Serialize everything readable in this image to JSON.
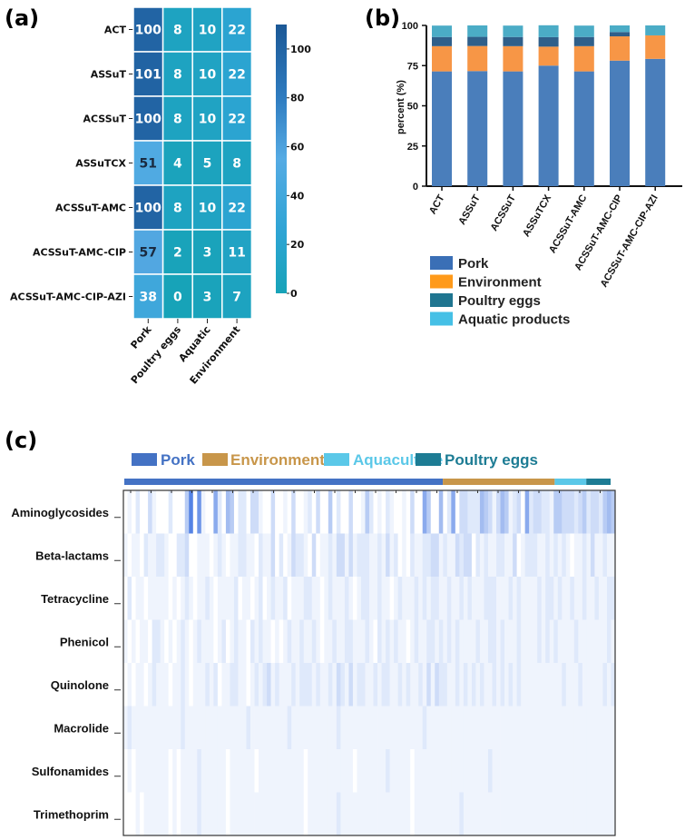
{
  "chart_data": [
    {
      "panel_label": "(a)",
      "type": "heatmap",
      "rows": [
        "ACT",
        "ASSuT",
        "ACSSuT",
        "ASSuTCX",
        "ACSSuT-AMC",
        "ACSSuT-AMC-CIP",
        "ACSSuT-AMC-CIP-AZI"
      ],
      "columns": [
        "Pork",
        "Poultry eggs",
        "Aquatic",
        "Environment"
      ],
      "values": [
        [
          100,
          8,
          10,
          22
        ],
        [
          101,
          8,
          10,
          22
        ],
        [
          100,
          8,
          10,
          22
        ],
        [
          51,
          4,
          5,
          8
        ],
        [
          100,
          8,
          10,
          22
        ],
        [
          57,
          2,
          3,
          11
        ],
        [
          38,
          0,
          3,
          7
        ]
      ],
      "colorbar": {
        "range": [
          0,
          110
        ],
        "ticks": [
          "0",
          "20",
          "40",
          "60",
          "80",
          "100"
        ]
      }
    },
    {
      "panel_label": "(b)",
      "type": "bar",
      "stacked": true,
      "ylabel": "percent (%)",
      "ylim": [
        0,
        100
      ],
      "yticks": [
        "0",
        "25",
        "50",
        "75",
        "100"
      ],
      "categories": [
        "ACT",
        "ASSuT",
        "ACSSuT",
        "ASSuTCX",
        "ACSSuT-AMC",
        "ACSSuT-AMC-CIP",
        "ACSSuT-AMC-CIP-AZI"
      ],
      "series": [
        {
          "name": "Pork",
          "color": "#4a7ebb",
          "values": [
            71.4,
            71.6,
            71.4,
            75.0,
            71.4,
            78.1,
            79.2
          ]
        },
        {
          "name": "Environment",
          "color": "#f79646",
          "values": [
            15.7,
            15.6,
            15.7,
            11.8,
            15.7,
            15.1,
            14.6
          ]
        },
        {
          "name": "Poultry eggs",
          "color": "#2f5f8a",
          "values": [
            5.7,
            5.7,
            5.7,
            5.9,
            5.7,
            2.7,
            0
          ]
        },
        {
          "name": "Aquatic products",
          "color": "#4bacc6",
          "values": [
            7.1,
            7.1,
            7.1,
            7.4,
            7.1,
            4.1,
            6.2
          ]
        }
      ],
      "legend": [
        {
          "name": "Pork",
          "color": "#3a6fb6"
        },
        {
          "name": "Environment",
          "color": "#ff9a1a"
        },
        {
          "name": "Poultry eggs",
          "color": "#1f7590"
        },
        {
          "name": "Aquatic products",
          "color": "#45c0e6"
        }
      ]
    },
    {
      "panel_label": "(c)",
      "type": "heatmap",
      "legend": [
        {
          "name": "Pork",
          "color": "#4472c4"
        },
        {
          "name": "Environment",
          "color": "#c8964a"
        },
        {
          "name": "Aquaculture",
          "color": "#5bc8e8"
        },
        {
          "name": "Poultry eggs",
          "color": "#1d7c94"
        }
      ],
      "group_fractions": [
        0.655,
        0.23,
        0.065,
        0.05
      ],
      "rows": [
        "Aminoglycosides",
        "Beta-lactams",
        "Tetracycline",
        "Phenicol",
        "Quinolone",
        "Macrolide",
        "Sulfonamides",
        "Trimethoprim"
      ],
      "intensity_scale": [
        0,
        9
      ],
      "intensities": [
        "010200310002000480710062054022033100300103001203004020030014201021001030064005026033222543135412306233221443332342332454",
        "101102112210022300111012101122110211302013221030112133131222112131201021122331211323302121122113012221121212101121311211",
        "020110111110101210112101111201101201211201112211012111210122112110121112121221121121211122211121211112122121121121121122",
        "101011022101012101211101201211021211010121121121011211221112102121211012112212121211112112212111211112121211112111111121",
        "010110121110112101112120112211012123121112122212112132131221121221121211213132211212121211212121211111111112111211111212",
        "121111111111112111111111111111211111111121111111111121111111111111111111121111111111111111111111111111111111111111111111",
        "010111111110101111211111101111110111111111110111111111110111111121111101111111111111111112111111111111111111111111111111",
        "000101111110101111211111101111111111111111110111111121111111111111111101111111111121111111111111111111111111111111111111"
      ]
    }
  ]
}
